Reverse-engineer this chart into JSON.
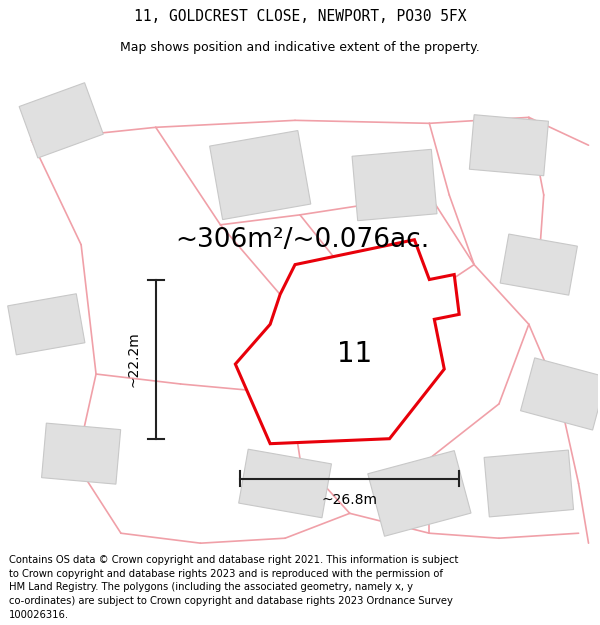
{
  "title_line1": "11, GOLDCREST CLOSE, NEWPORT, PO30 5FX",
  "title_line2": "Map shows position and indicative extent of the property.",
  "area_text": "~306m²/~0.076ac.",
  "number_label": "11",
  "dim_width": "~26.8m",
  "dim_height": "~22.2m",
  "copyright_text": "Contains OS data © Crown copyright and database right 2021. This information is subject to Crown copyright and database rights 2023 and is reproduced with the permission of HM Land Registry. The polygons (including the associated geometry, namely x, y co-ordinates) are subject to Crown copyright and database rights 2023 Ordnance Survey 100026316.",
  "bg_color": "#ffffff",
  "map_bg_color": "#ffffff",
  "property_color": "#e8000a",
  "building_fill": "#e0e0e0",
  "building_edge": "#c8c8c8",
  "road_color": "#f0a0a8",
  "dim_color": "#222222",
  "title_fontsize": 10.5,
  "subtitle_fontsize": 9,
  "area_fontsize": 19,
  "number_fontsize": 20,
  "dim_fontsize": 10,
  "copyright_fontsize": 7.2,
  "road_lw": 1.2,
  "property_lw": 2.2
}
